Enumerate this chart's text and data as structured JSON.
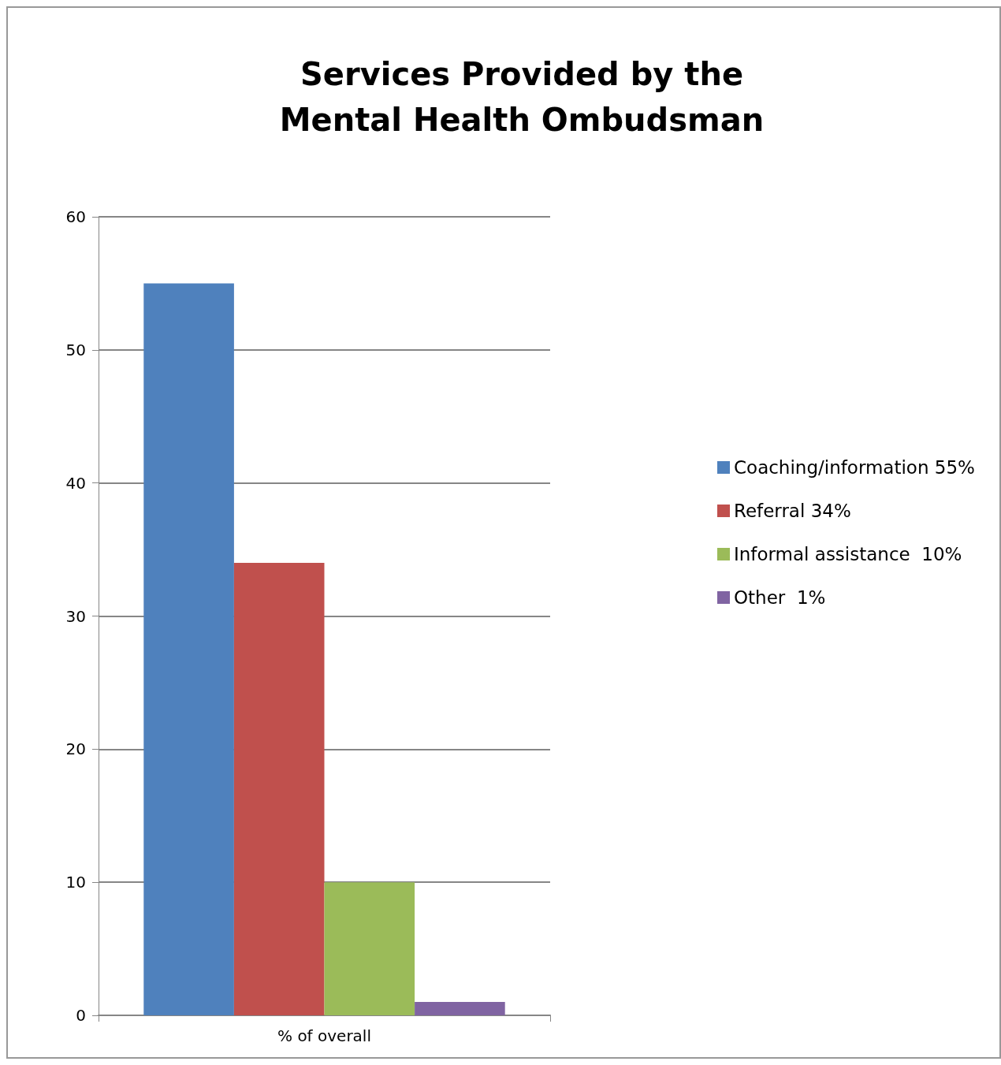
{
  "chart_data": {
    "type": "bar",
    "title": "Services Provided by the\nMental Health Ombudsman",
    "categories": [
      "% of overall"
    ],
    "series": [
      {
        "name": "Coaching/information 55%",
        "color": "#4f81bd",
        "values": [
          55
        ]
      },
      {
        "name": "Referral 34%",
        "color": "#c0504d",
        "values": [
          34
        ]
      },
      {
        "name": "Informal assistance  10%",
        "color": "#9bbb59",
        "values": [
          10
        ]
      },
      {
        "name": "Other  1%",
        "color": "#8064a2",
        "values": [
          1
        ]
      }
    ],
    "ylim": [
      0,
      60
    ],
    "yticks": [
      0,
      10,
      20,
      30,
      40,
      50,
      60
    ],
    "grid": "y",
    "legend": "right"
  }
}
